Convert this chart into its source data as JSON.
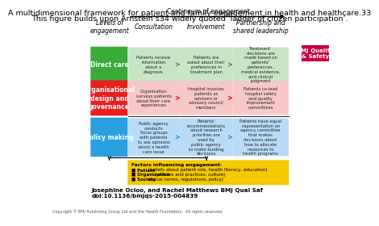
{
  "title_line1": "A multidimensional framework for patient and family engagement in health and healthcare.33",
  "title_line2": "This figure builds upon Arnstein’s34 widely quoted ‘ladder of citizen participation’.",
  "bg_color": "#ffffff",
  "col_headers": [
    "Levels of\nengagement",
    "Consultation",
    "Involvement",
    "Partnership and\nshared leadership"
  ],
  "continuum_label": "Continuum of engagement",
  "row_labels": [
    "Direct care",
    "Organisational\ndesign and\ngovernance",
    "Policy making"
  ],
  "row_label_colors": [
    "#3aab3a",
    "#e62020",
    "#29a0e0"
  ],
  "row_label_text_colors": [
    "#ffffff",
    "#ffffff",
    "#ffffff"
  ],
  "cell_colors_light": [
    "#c8e6c5",
    "#f8c8c8",
    "#b8dcf8"
  ],
  "cell_texts": [
    [
      "Patients receive\ninformation\nabout a\ndiagnosis",
      "Patients are\nasked about their\npreferences in\ntreatment plan",
      "Treatment\ndecisions are\nmade based on\npatients'\npreferences,\nmedical evidence,\nand clinical\njudgment"
    ],
    [
      "Organisation\nsurveys patients\nabout their care\nexperiences",
      "Hospital involves\npatients as\nadvisors or\nadvisory council\nmembers",
      "Patients co-lead\nhospital safety\nand quality\nimprovement\ncommittees"
    ],
    [
      "Public agency\nconducts\nfocus groups\nwith patients\nto ask opinions\nabout a health\ncare issue",
      "Patients'\nrecommendations\nabout research\npriorities are\nused by\npublic agency\nto make funding\ndecisions",
      "Patients have equal\nrepresentation on\nagency committee\nthat makes\ndecisions about\nhow to allocate\nresources to\nhealth programs"
    ]
  ],
  "arrow_colors": [
    "#3aab3a",
    "#e62020",
    "#29a0e0"
  ],
  "factors_box_color": "#f5c800",
  "factors_bold1": "Factors influencing engagement:",
  "factors_line1_bold": "■ Patient",
  "factors_line1_rest": " (beliefs about patient role, health literacy, education)",
  "factors_line2_bold": "■ Organization",
  "factors_line2_rest": " (policies and practices, culture)",
  "factors_line3_bold": "■ Society",
  "factors_line3_rest": " (social norms, regulations, policy)",
  "author_text": "Josephine Ocloo, and Rachel Matthews BMJ Qual Saf\ndoi:10.1136/bmjqs-2015-004839",
  "copyright_text": "Copyright © BMJ Publishing Group Ltd and the Health Foundation.  All rights reserved.",
  "bmj_label": "BMJ Quality\n& Safety",
  "bmj_color": "#c8003c"
}
